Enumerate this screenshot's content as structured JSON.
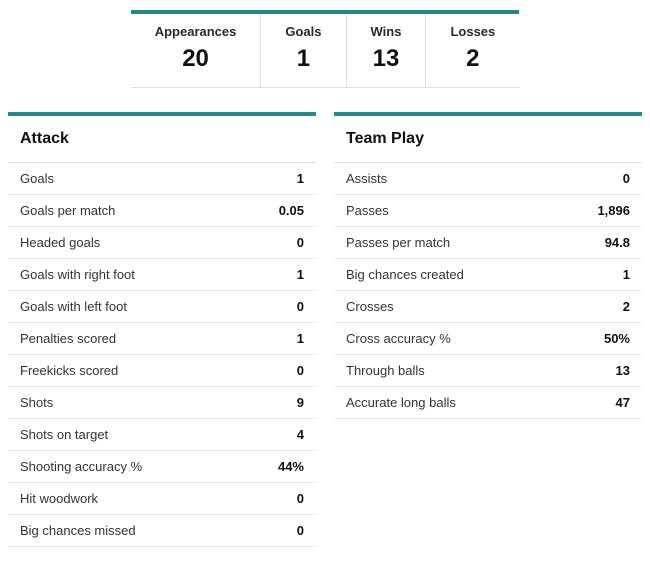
{
  "colors": {
    "accent_border": "#1f8b8b",
    "divider": "#e0e0e0",
    "row_divider": "#ececec",
    "background": "#ffffff",
    "text_primary": "#111111"
  },
  "summary": [
    {
      "label": "Appearances",
      "value": "20"
    },
    {
      "label": "Goals",
      "value": "1"
    },
    {
      "label": "Wins",
      "value": "13"
    },
    {
      "label": "Losses",
      "value": "2"
    }
  ],
  "attack": {
    "title": "Attack",
    "rows": [
      {
        "label": "Goals",
        "value": "1"
      },
      {
        "label": "Goals per match",
        "value": "0.05"
      },
      {
        "label": "Headed goals",
        "value": "0"
      },
      {
        "label": "Goals with right foot",
        "value": "1"
      },
      {
        "label": "Goals with left foot",
        "value": "0"
      },
      {
        "label": "Penalties scored",
        "value": "1"
      },
      {
        "label": "Freekicks scored",
        "value": "0"
      },
      {
        "label": "Shots",
        "value": "9"
      },
      {
        "label": "Shots on target",
        "value": "4"
      },
      {
        "label": "Shooting accuracy %",
        "value": "44%"
      },
      {
        "label": "Hit woodwork",
        "value": "0"
      },
      {
        "label": "Big chances missed",
        "value": "0"
      }
    ]
  },
  "teamplay": {
    "title": "Team Play",
    "rows": [
      {
        "label": "Assists",
        "value": "0"
      },
      {
        "label": "Passes",
        "value": "1,896"
      },
      {
        "label": "Passes per match",
        "value": "94.8"
      },
      {
        "label": "Big chances created",
        "value": "1"
      },
      {
        "label": "Crosses",
        "value": "2"
      },
      {
        "label": "Cross accuracy %",
        "value": "50%"
      },
      {
        "label": "Through balls",
        "value": "13"
      },
      {
        "label": "Accurate long balls",
        "value": "47"
      }
    ]
  }
}
